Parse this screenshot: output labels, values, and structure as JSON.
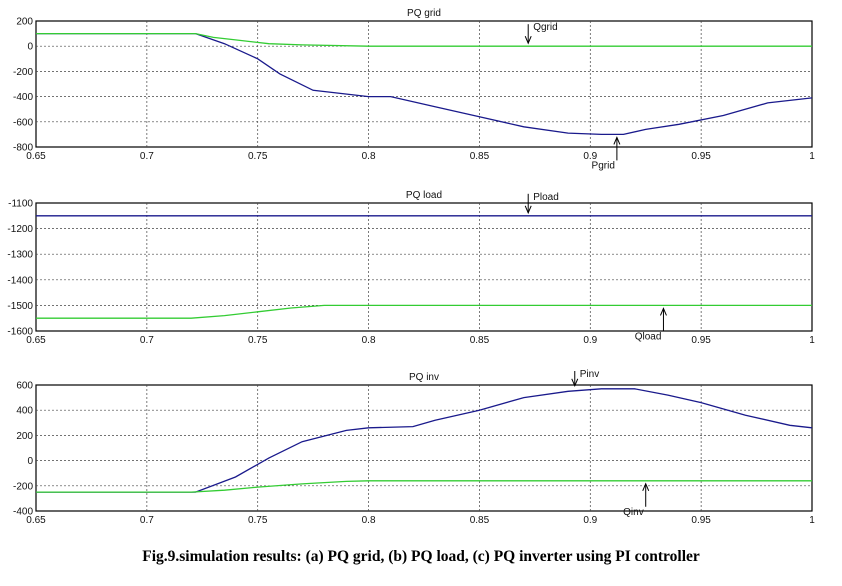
{
  "caption": "Fig.9.simulation results: (a) PQ grid, (b) PQ load, (c) PQ inverter using PI controller",
  "colors": {
    "p_series": "#1a1a8c",
    "q_series": "#33cc33",
    "axes": "#000000",
    "grid": "#444444"
  },
  "chart_data": [
    {
      "type": "line",
      "title": "PQ grid",
      "xlim": [
        0.65,
        1
      ],
      "x_ticks": [
        "0.65",
        "0.7",
        "0.75",
        "0.8",
        "0.85",
        "0.9",
        "0.95",
        "1"
      ],
      "ylim": [
        -800,
        200
      ],
      "y_ticks": [
        "200",
        "0",
        "-200",
        "-400",
        "-600",
        "-800"
      ],
      "grid": true,
      "series": [
        {
          "name": "Pgrid",
          "color": "#1a1a8c",
          "x": [
            0.65,
            0.7,
            0.722,
            0.735,
            0.75,
            0.76,
            0.775,
            0.8,
            0.81,
            0.83,
            0.85,
            0.87,
            0.89,
            0.905,
            0.915,
            0.925,
            0.94,
            0.96,
            0.98,
            1.0
          ],
          "y": [
            100,
            100,
            100,
            20,
            -100,
            -220,
            -350,
            -400,
            -400,
            -480,
            -560,
            -640,
            -690,
            -700,
            -700,
            -660,
            -620,
            -550,
            -450,
            -410
          ]
        },
        {
          "name": "Qgrid",
          "color": "#33cc33",
          "x": [
            0.65,
            0.7,
            0.722,
            0.73,
            0.74,
            0.755,
            0.77,
            0.8,
            1.0
          ],
          "y": [
            100,
            100,
            100,
            70,
            50,
            20,
            10,
            0,
            0
          ]
        }
      ],
      "annotations": [
        {
          "text": "Pgrid",
          "at": [
            0.912,
            -700
          ]
        },
        {
          "text": "Qgrid",
          "at": [
            0.872,
            0
          ]
        }
      ]
    },
    {
      "type": "line",
      "title": "PQ load",
      "xlim": [
        0.65,
        1
      ],
      "x_ticks": [
        "0.65",
        "0.7",
        "0.75",
        "0.8",
        "0.85",
        "0.9",
        "0.95",
        "1"
      ],
      "ylim": [
        -1600,
        -1100
      ],
      "y_ticks": [
        "-1100",
        "-1200",
        "-1300",
        "-1400",
        "-1500",
        "-1600"
      ],
      "grid": true,
      "series": [
        {
          "name": "Pload",
          "color": "#1a1a8c",
          "x": [
            0.65,
            1.0
          ],
          "y": [
            -1150,
            -1150
          ]
        },
        {
          "name": "Qload",
          "color": "#33cc33",
          "x": [
            0.65,
            0.72,
            0.735,
            0.75,
            0.765,
            0.78,
            0.79,
            0.8,
            1.0
          ],
          "y": [
            -1550,
            -1550,
            -1540,
            -1525,
            -1510,
            -1500,
            -1500,
            -1500,
            -1500
          ]
        }
      ],
      "annotations": [
        {
          "text": "Pload",
          "at": [
            0.872,
            -1150
          ]
        },
        {
          "text": "Qload",
          "at": [
            0.933,
            -1500
          ]
        }
      ]
    },
    {
      "type": "line",
      "title": "PQ inv",
      "xlim": [
        0.65,
        1
      ],
      "x_ticks": [
        "0.65",
        "0.7",
        "0.75",
        "0.8",
        "0.85",
        "0.9",
        "0.95",
        "1"
      ],
      "ylim": [
        -400,
        600
      ],
      "y_ticks": [
        "600",
        "400",
        "200",
        "0",
        "-200",
        "-400"
      ],
      "grid": true,
      "series": [
        {
          "name": "Pinv",
          "color": "#1a1a8c",
          "x": [
            0.65,
            0.7,
            0.722,
            0.74,
            0.755,
            0.77,
            0.79,
            0.8,
            0.82,
            0.83,
            0.85,
            0.87,
            0.89,
            0.905,
            0.92,
            0.935,
            0.95,
            0.97,
            0.99,
            1.0
          ],
          "y": [
            -250,
            -250,
            -250,
            -130,
            20,
            150,
            240,
            260,
            270,
            320,
            400,
            500,
            550,
            570,
            570,
            520,
            460,
            360,
            280,
            260
          ]
        },
        {
          "name": "Qinv",
          "color": "#33cc33",
          "x": [
            0.65,
            0.72,
            0.735,
            0.75,
            0.77,
            0.79,
            0.8,
            1.0
          ],
          "y": [
            -250,
            -250,
            -235,
            -210,
            -185,
            -165,
            -160,
            -160
          ]
        }
      ],
      "annotations": [
        {
          "text": "Pinv",
          "at": [
            0.893,
            570
          ]
        },
        {
          "text": "Qinv",
          "at": [
            0.925,
            -160
          ]
        }
      ]
    }
  ]
}
